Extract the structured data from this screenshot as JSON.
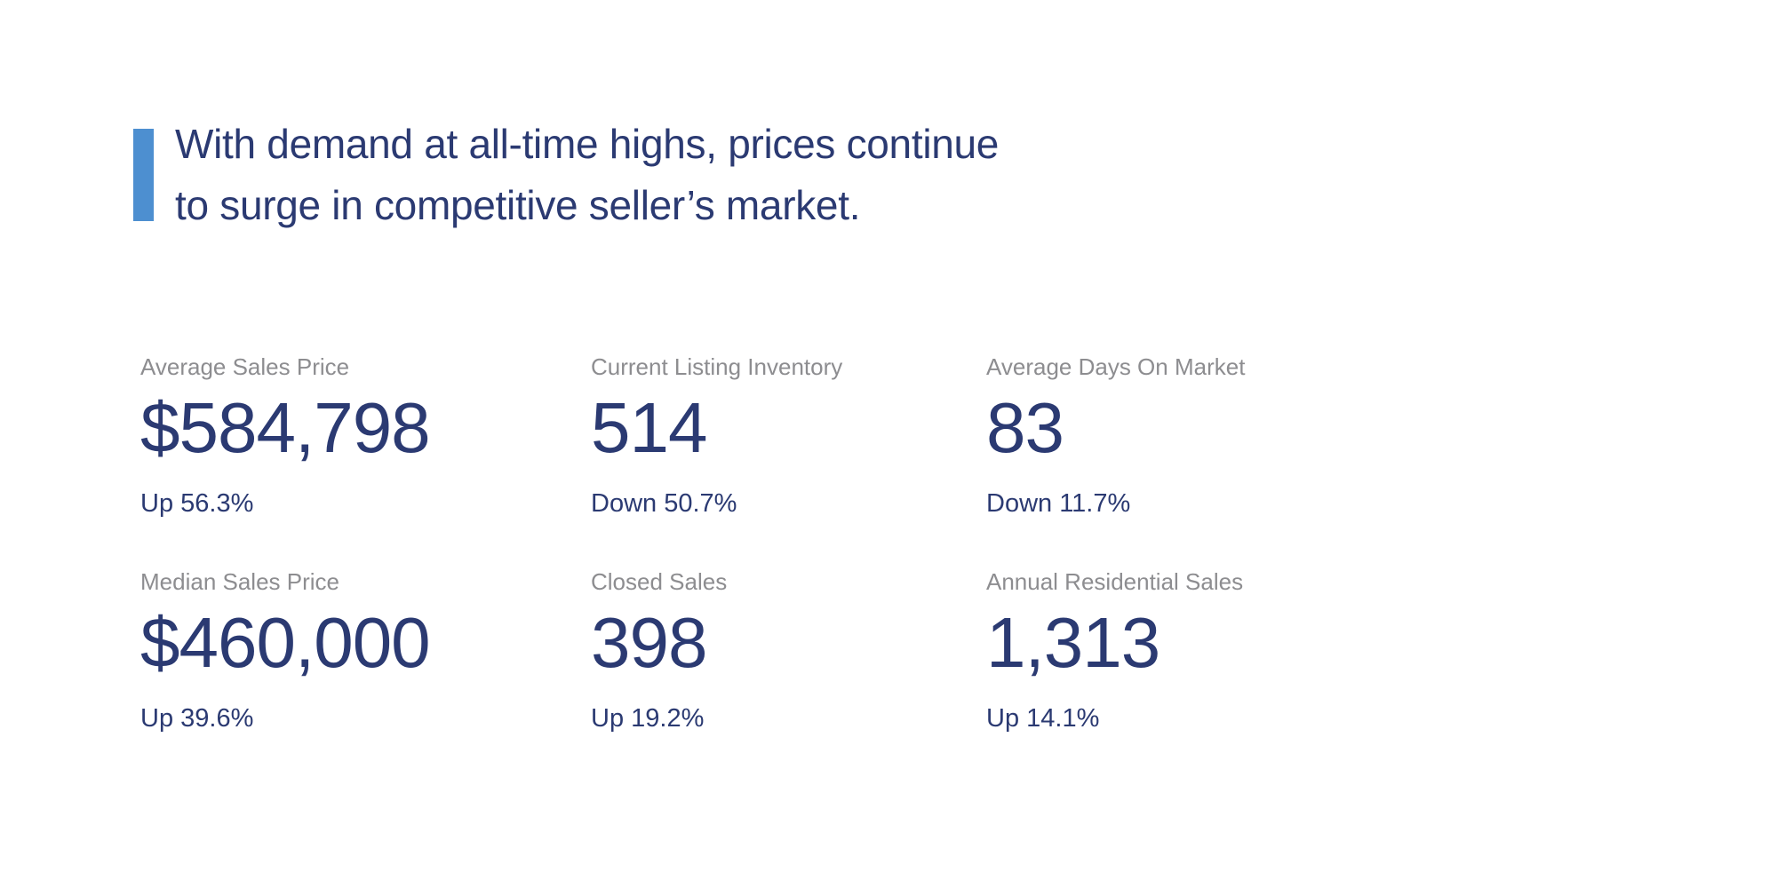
{
  "page": {
    "background": "#ffffff"
  },
  "headline": {
    "line1": "With demand at all-time highs, prices continue",
    "line2": "to surge in competitive seller’s market.",
    "accent_color": "#4D8FD0",
    "text_color": "#2B3A72"
  },
  "stats": [
    {
      "label": "Average Sales Price",
      "value": "$584,798",
      "delta": "Up 56.3%"
    },
    {
      "label": "Current Listing Inventory",
      "value": "514",
      "delta": "Down 50.7%"
    },
    {
      "label": "Average Days On Market",
      "value": "83",
      "delta": "Down 11.7%"
    },
    {
      "label": "Median Sales Price",
      "value": "$460,000",
      "delta": "Up 39.6%"
    },
    {
      "label": "Closed Sales",
      "value": "398",
      "delta": "Up 19.2%"
    },
    {
      "label": "Annual Residential Sales",
      "value": "1,313",
      "delta": "Up 14.1%"
    }
  ],
  "colors": {
    "label_gray": "#8D8D90",
    "navy": "#2B3A72",
    "accent_blue": "#4D8FD0"
  }
}
